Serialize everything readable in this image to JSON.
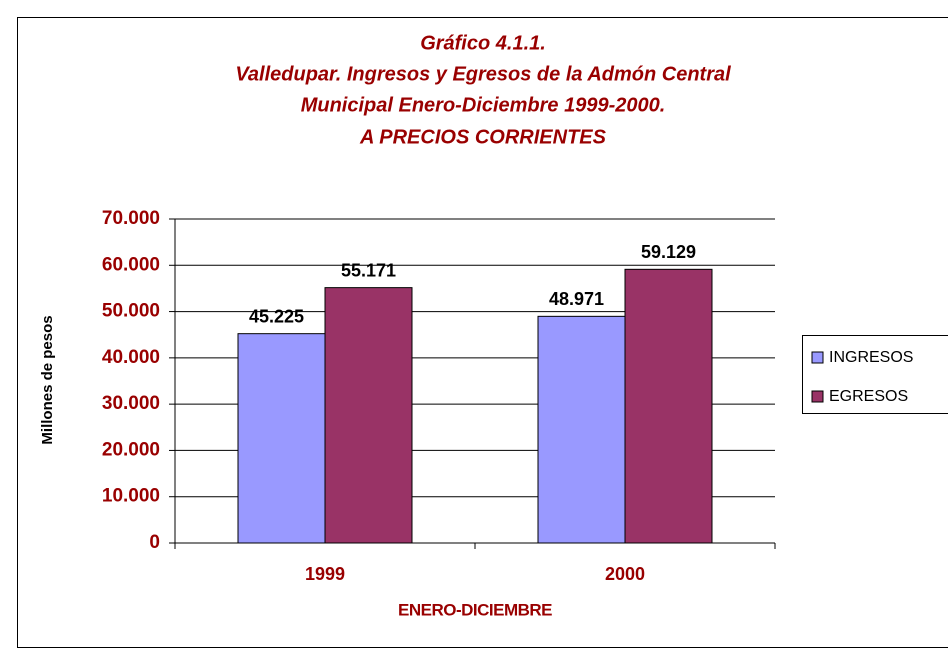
{
  "chart_data": {
    "type": "bar",
    "title": [
      "Gráfico 4.1.1.",
      "Valledupar. Ingresos y Egresos de la Admón Central",
      "Municipal Enero-Diciembre 1999-2000.",
      "A PRECIOS CORRIENTES"
    ],
    "x_label": "ENERO-DICIEMBRE",
    "y_label": "Millones de pesos",
    "categories": [
      "1999",
      "2000"
    ],
    "series": [
      {
        "name": "INGRESOS",
        "color": "#9999ff",
        "values": [
          45225,
          48971
        ],
        "value_labels": [
          "45.225",
          "48.971"
        ]
      },
      {
        "name": "EGRESOS",
        "color": "#993366",
        "values": [
          55171,
          59129
        ],
        "value_labels": [
          "55.171",
          "59.129"
        ]
      }
    ],
    "ylim": [
      0,
      70000
    ],
    "yticks": [
      0,
      {
        "value": 10000,
        "label": "10.000"
      },
      {
        "value": 20000,
        "label": "20.000"
      },
      {
        "value": 30000,
        "label": "30.000"
      },
      {
        "value": 40000,
        "label": "40.000"
      },
      {
        "value": 50000,
        "label": "50.000"
      },
      {
        "value": 60000,
        "label": "60.000"
      },
      {
        "value": 70000,
        "label": "70.000"
      }
    ],
    "grid": true,
    "legend": "right"
  }
}
